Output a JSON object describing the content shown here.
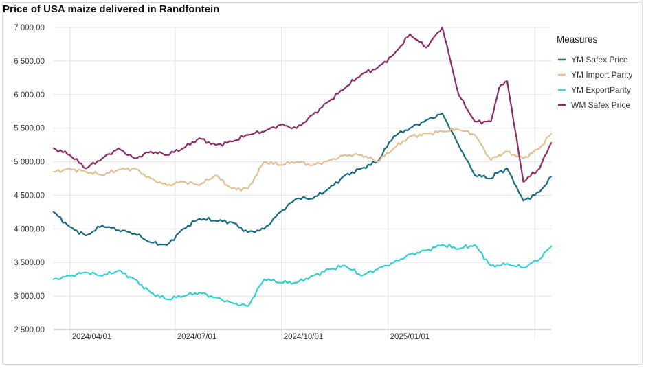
{
  "chart_data": {
    "type": "line",
    "title": "Price of USA maize delivered in Randfontein",
    "xlabel": "",
    "ylabel": "",
    "ylim": [
      2500,
      7000
    ],
    "yticks": [
      2500,
      3000,
      3500,
      4000,
      4500,
      5000,
      5500,
      6000,
      6500,
      7000
    ],
    "ytick_labels": [
      "2 500.00",
      "3 000.00",
      "3 500.00",
      "4 000.00",
      "4 500.00",
      "5 000.00",
      "5 500.00",
      "6 000.00",
      "6 500.00",
      "7 000.00"
    ],
    "xlim": [
      "2024-03-18",
      "2025-05-22"
    ],
    "xticks": [
      "2024-04-01",
      "2024-07-01",
      "2024-10-01",
      "2025-01-01"
    ],
    "xtick_labels": [
      "2024/04/01",
      "2024/07/01",
      "2024/10/01",
      "2025/01/01"
    ],
    "grid": true,
    "legend": {
      "title": "Measures",
      "position": "right"
    },
    "x": [
      "2024-03-18",
      "2024-04-01",
      "2024-04-15",
      "2024-04-29",
      "2024-05-13",
      "2024-05-27",
      "2024-06-10",
      "2024-06-24",
      "2024-07-08",
      "2024-07-22",
      "2024-08-05",
      "2024-08-19",
      "2024-09-02",
      "2024-09-16",
      "2024-09-30",
      "2024-10-14",
      "2024-10-28",
      "2024-11-11",
      "2024-11-25",
      "2024-12-09",
      "2024-12-23",
      "2025-01-06",
      "2025-01-20",
      "2025-02-03",
      "2025-02-17",
      "2025-03-03",
      "2025-03-17",
      "2025-03-31",
      "2025-04-07",
      "2025-04-14",
      "2025-04-28",
      "2025-05-12",
      "2025-05-22"
    ],
    "series": [
      {
        "name": "YM Safex Price",
        "color": "#17697d",
        "values": [
          4250,
          4030,
          3900,
          4050,
          3980,
          3930,
          3800,
          3760,
          4000,
          4150,
          4120,
          4100,
          3950,
          4000,
          4250,
          4450,
          4450,
          4600,
          4800,
          4900,
          5000,
          5380,
          5500,
          5620,
          5720,
          5250,
          4800,
          4750,
          4850,
          4900,
          4420,
          4550,
          4780
        ]
      },
      {
        "name": "YM Import Parity",
        "color": "#e2bf90",
        "values": [
          4850,
          4900,
          4850,
          4800,
          4880,
          4900,
          4750,
          4650,
          4700,
          4650,
          4800,
          4600,
          4600,
          5000,
          4950,
          5000,
          4950,
          5020,
          5100,
          5100,
          5000,
          5200,
          5380,
          5420,
          5450,
          5480,
          5400,
          5020,
          5100,
          5150,
          5050,
          5200,
          5420
        ]
      },
      {
        "name": "YM ExportParity",
        "color": "#33cfcf",
        "values": [
          3250,
          3300,
          3350,
          3300,
          3380,
          3250,
          3050,
          2950,
          3000,
          3050,
          2980,
          2900,
          2850,
          3250,
          3200,
          3200,
          3300,
          3400,
          3450,
          3300,
          3400,
          3500,
          3620,
          3680,
          3760,
          3700,
          3760,
          3450,
          3450,
          3480,
          3420,
          3550,
          3740
        ]
      },
      {
        "name": "WM Safex Price",
        "color": "#8c2a62",
        "values": [
          5200,
          5100,
          4900,
          5050,
          5200,
          5050,
          5150,
          5100,
          5200,
          5350,
          5250,
          5300,
          5400,
          5450,
          5550,
          5500,
          5700,
          5900,
          6100,
          6300,
          6400,
          6600,
          6900,
          6700,
          7000,
          6000,
          5600,
          5600,
          6100,
          6200,
          4700,
          4900,
          5280
        ]
      }
    ]
  }
}
